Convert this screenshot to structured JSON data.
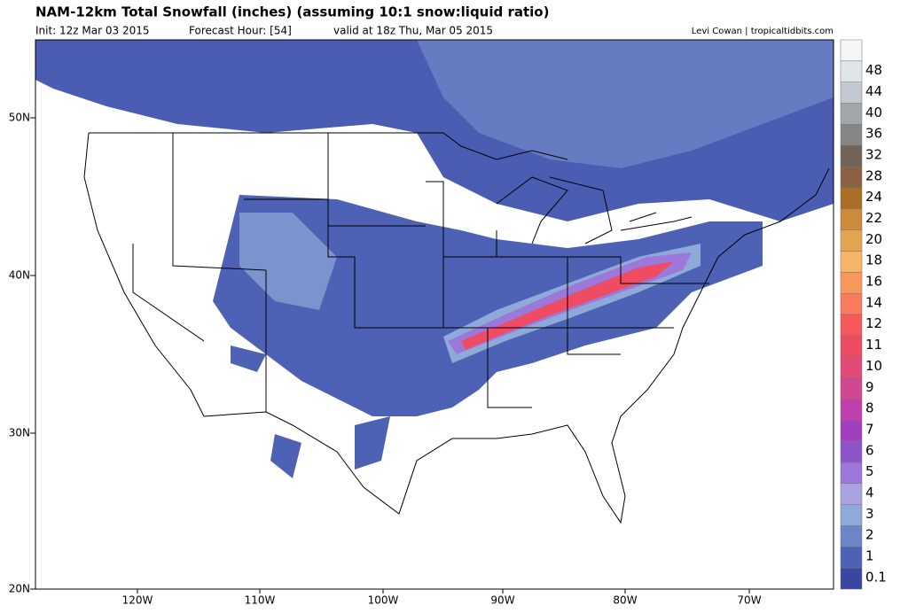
{
  "header": {
    "title": "NAM-12km Total Snowfall (inches) (assuming 10:1 snow:liquid ratio)",
    "init": "Init: 12z Mar 03 2015",
    "forecast_hour": "Forecast Hour: [54]",
    "valid": "valid at 18z Thu, Mar 05 2015",
    "credit": "Levi Cowan | tropicaltidbits.com"
  },
  "map": {
    "lat_labels": [
      "50N",
      "40N",
      "30N",
      "20N"
    ],
    "lon_labels": [
      "120W",
      "110W",
      "100W",
      "90W",
      "80W",
      "70W"
    ]
  },
  "colorbar": {
    "levels": [
      0.1,
      1,
      2,
      3,
      4,
      5,
      6,
      7,
      8,
      9,
      10,
      11,
      12,
      14,
      16,
      18,
      20,
      22,
      24,
      28,
      32,
      36,
      40,
      44,
      48
    ],
    "colors": [
      "#3a47a0",
      "#4d62b4",
      "#6b85c6",
      "#8fa9d9",
      "#a9a4e0",
      "#9b78d9",
      "#8e53c9",
      "#a33fbf",
      "#c23fae",
      "#d3478f",
      "#e24a78",
      "#ef4b63",
      "#f6585a",
      "#f77b5c",
      "#f8985d",
      "#f6b466",
      "#e4a553",
      "#cd8b3b",
      "#aa6f27",
      "#8a6142",
      "#6f6457",
      "#858585",
      "#a2a5aa",
      "#c2c9d1",
      "#e1e5ea"
    ]
  }
}
